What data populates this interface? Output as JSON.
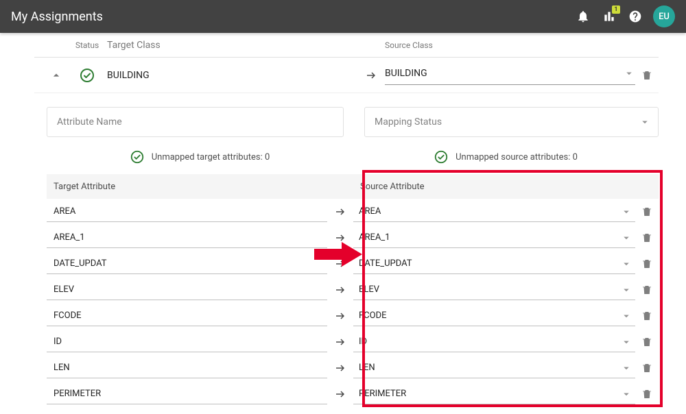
{
  "topbar": {
    "title": "My Assignments",
    "badge": "1",
    "avatar": "EU"
  },
  "headerRow": {
    "status": "Status",
    "targetClass": "Target Class",
    "sourceClass": "Source Class"
  },
  "classRow": {
    "target": "BUILDING",
    "source": "BUILDING"
  },
  "filters": {
    "attributeName": "Attribute Name",
    "mappingStatus": "Mapping Status"
  },
  "unmapped": {
    "target": "Unmapped target attributes: 0",
    "source": "Unmapped source attributes: 0"
  },
  "tableHeader": {
    "target": "Target Attribute",
    "source": "Source Attribute"
  },
  "rows": [
    {
      "target": "AREA",
      "source": "AREA"
    },
    {
      "target": "AREA_1",
      "source": "AREA_1"
    },
    {
      "target": "DATE_UPDAT",
      "source": "DATE_UPDAT"
    },
    {
      "target": "ELEV",
      "source": "ELEV"
    },
    {
      "target": "FCODE",
      "source": "FCODE"
    },
    {
      "target": "ID",
      "source": "ID"
    },
    {
      "target": "LEN",
      "source": "LEN"
    },
    {
      "target": "PERIMETER",
      "source": "PERIMETER"
    }
  ],
  "colors": {
    "accent": "#2e7d32",
    "topbar": "#424242",
    "avatar": "#26a69a",
    "badge": "#cddc39",
    "highlight": "#e4002b"
  }
}
